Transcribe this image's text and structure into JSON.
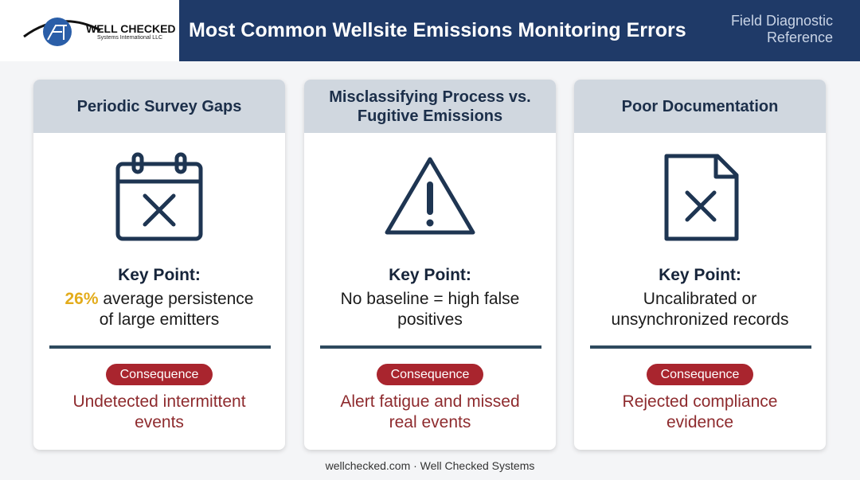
{
  "header": {
    "logo_name": "WELL CHECKED",
    "logo_sub": "Systems International LLC",
    "title": "Most Common Wellsite Emissions Monitoring Errors",
    "tag": "Field Diagnostic Reference"
  },
  "cards": [
    {
      "title": "Periodic Survey Gaps",
      "key_label": "Key Point:",
      "key_highlight": "26%",
      "key_text": "average persistence of large emitters",
      "consequence_label": "Consequence",
      "consequence_text": "Undetected intermittent events"
    },
    {
      "title": "Misclassifying Process vs. Fugitive Emissions",
      "key_label": "Key Point:",
      "key_text": "No baseline = high false positives",
      "consequence_label": "Consequence",
      "consequence_text": "Alert fatigue and missed real events"
    },
    {
      "title": "Poor Documentation",
      "key_label": "Key Point:",
      "key_text": "Uncalibrated or unsynchronized records",
      "consequence_label": "Consequence",
      "consequence_text": "Rejected compliance evidence"
    }
  ],
  "footer": "wellchecked.com · Well Checked Systems"
}
